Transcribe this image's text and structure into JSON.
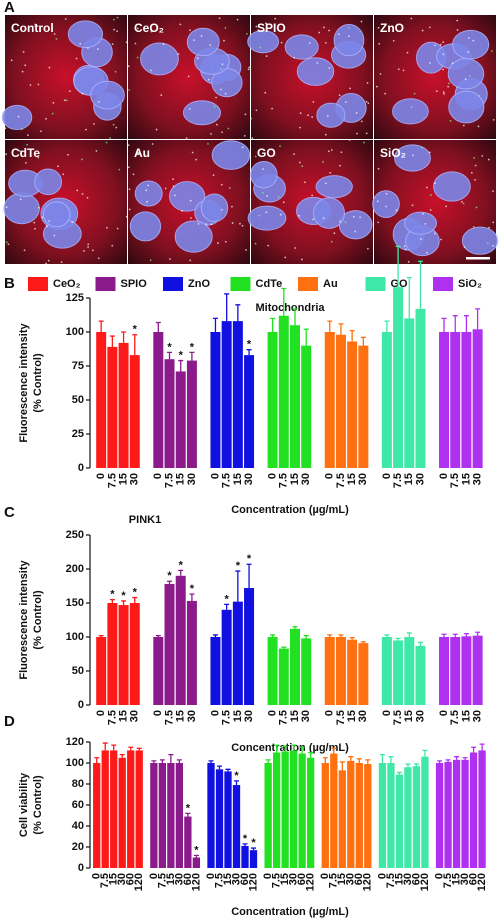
{
  "panel_a": {
    "label": "A",
    "images": [
      "Control",
      "CeO₂",
      "SPIO",
      "ZnO",
      "CdTe",
      "Au",
      "GO",
      "SiO₂"
    ]
  },
  "legend": [
    {
      "name": "CeO₂",
      "color": "#ff1a1a"
    },
    {
      "name": "SPIO",
      "color": "#8b1a8b"
    },
    {
      "name": "ZnO",
      "color": "#1010e0"
    },
    {
      "name": "CdTe",
      "color": "#22e022"
    },
    {
      "name": "Au",
      "color": "#ff7010"
    },
    {
      "name": "GO",
      "color": "#40e8a8"
    },
    {
      "name": "SiO₂",
      "color": "#b030f0"
    }
  ],
  "chart_data": [
    {
      "type": "bar",
      "panel": "B",
      "title": "Mitochondria",
      "ylabel": [
        "Fluorescence intensity",
        "(% Control)"
      ],
      "xlabel": "Concentration (µg/mL)",
      "categories": [
        "0",
        "7.5",
        "15",
        "30"
      ],
      "ylim": [
        0,
        125
      ],
      "yticks": [
        0,
        25,
        50,
        75,
        100,
        125
      ],
      "series": [
        {
          "values": [
            100,
            89,
            92,
            83
          ],
          "errors": [
            8,
            8,
            8,
            15
          ],
          "stars": [
            null,
            null,
            null,
            "*"
          ]
        },
        {
          "values": [
            100,
            80,
            71,
            79
          ],
          "errors": [
            7,
            5,
            8,
            6
          ],
          "stars": [
            null,
            "*",
            "*",
            "*"
          ]
        },
        {
          "values": [
            100,
            108,
            108,
            83
          ],
          "errors": [
            10,
            20,
            12,
            4
          ],
          "stars": [
            null,
            null,
            null,
            "*"
          ]
        },
        {
          "values": [
            100,
            112,
            105,
            90
          ],
          "errors": [
            10,
            20,
            12,
            12
          ],
          "stars": [
            null,
            null,
            null,
            null
          ]
        },
        {
          "values": [
            100,
            98,
            93,
            90
          ],
          "errors": [
            8,
            8,
            8,
            6
          ],
          "stars": [
            null,
            null,
            null,
            null
          ]
        },
        {
          "values": [
            100,
            133,
            110,
            117
          ],
          "errors": [
            8,
            30,
            30,
            35
          ],
          "stars": [
            null,
            null,
            null,
            null
          ]
        },
        {
          "values": [
            100,
            100,
            100,
            102
          ],
          "errors": [
            10,
            12,
            12,
            15
          ],
          "stars": [
            null,
            null,
            null,
            null
          ]
        }
      ]
    },
    {
      "type": "bar",
      "panel": "C",
      "title": "PINK1",
      "ylabel": [
        "Fluorescence intensity",
        "(% Control)"
      ],
      "xlabel": "Concentration (µg/mL)",
      "categories": [
        "0",
        "7.5",
        "15",
        "30"
      ],
      "ylim": [
        0,
        250
      ],
      "yticks": [
        0,
        50,
        100,
        150,
        200,
        250
      ],
      "series": [
        {
          "values": [
            100,
            150,
            147,
            150
          ],
          "errors": [
            2,
            5,
            6,
            8
          ],
          "stars": [
            null,
            "*",
            "*",
            "*"
          ]
        },
        {
          "values": [
            100,
            178,
            190,
            153
          ],
          "errors": [
            2,
            4,
            8,
            10
          ],
          "stars": [
            null,
            "*",
            "*",
            "*"
          ]
        },
        {
          "values": [
            100,
            140,
            152,
            172
          ],
          "errors": [
            3,
            8,
            45,
            35
          ],
          "stars": [
            null,
            "*",
            "*",
            "*"
          ]
        },
        {
          "values": [
            100,
            83,
            112,
            98
          ],
          "errors": [
            3,
            2,
            3,
            4
          ],
          "stars": [
            null,
            null,
            null,
            null
          ]
        },
        {
          "values": [
            100,
            100,
            96,
            91
          ],
          "errors": [
            3,
            3,
            3,
            2
          ],
          "stars": [
            null,
            null,
            null,
            null
          ]
        },
        {
          "values": [
            100,
            95,
            100,
            87
          ],
          "errors": [
            3,
            3,
            6,
            5
          ],
          "stars": [
            null,
            null,
            null,
            null
          ]
        },
        {
          "values": [
            100,
            100,
            101,
            102
          ],
          "errors": [
            4,
            4,
            4,
            5
          ],
          "stars": [
            null,
            null,
            null,
            null
          ]
        }
      ]
    },
    {
      "type": "bar",
      "panel": "D",
      "ylabel": [
        "Cell viability",
        "(% Control)"
      ],
      "xlabel": "Concentration (µg/mL)",
      "categories": [
        "0",
        "7.5",
        "15",
        "30",
        "60",
        "120"
      ],
      "ylim": [
        0,
        120
      ],
      "yticks": [
        0,
        20,
        40,
        60,
        80,
        100,
        120
      ],
      "series": [
        {
          "values": [
            100,
            112,
            112,
            105,
            112,
            112
          ],
          "errors": [
            5,
            7,
            5,
            3,
            3,
            2
          ],
          "stars": [
            null,
            null,
            null,
            null,
            null,
            null
          ]
        },
        {
          "values": [
            100,
            100,
            100,
            100,
            49,
            10
          ],
          "errors": [
            2,
            3,
            8,
            3,
            3,
            2
          ],
          "stars": [
            null,
            null,
            null,
            null,
            "*",
            "*"
          ]
        },
        {
          "values": [
            100,
            94,
            92,
            79,
            21,
            17
          ],
          "errors": [
            2,
            3,
            2,
            4,
            2,
            2
          ],
          "stars": [
            null,
            null,
            null,
            "*",
            "*",
            "*"
          ]
        },
        {
          "values": [
            100,
            110,
            111,
            112,
            109,
            105
          ],
          "errors": [
            3,
            7,
            5,
            5,
            6,
            5
          ],
          "stars": [
            null,
            null,
            null,
            null,
            null,
            null
          ]
        },
        {
          "values": [
            100,
            109,
            93,
            102,
            100,
            99
          ],
          "errors": [
            5,
            5,
            8,
            4,
            4,
            4
          ],
          "stars": [
            null,
            null,
            null,
            null,
            null,
            null
          ]
        },
        {
          "values": [
            100,
            100,
            89,
            96,
            97,
            106
          ],
          "errors": [
            8,
            6,
            2,
            3,
            2,
            6
          ],
          "stars": [
            null,
            null,
            null,
            null,
            null,
            null
          ]
        },
        {
          "values": [
            100,
            101,
            103,
            103,
            110,
            112
          ],
          "errors": [
            2,
            2,
            3,
            2,
            5,
            6
          ],
          "stars": [
            null,
            null,
            null,
            null,
            null,
            null
          ]
        }
      ]
    }
  ]
}
